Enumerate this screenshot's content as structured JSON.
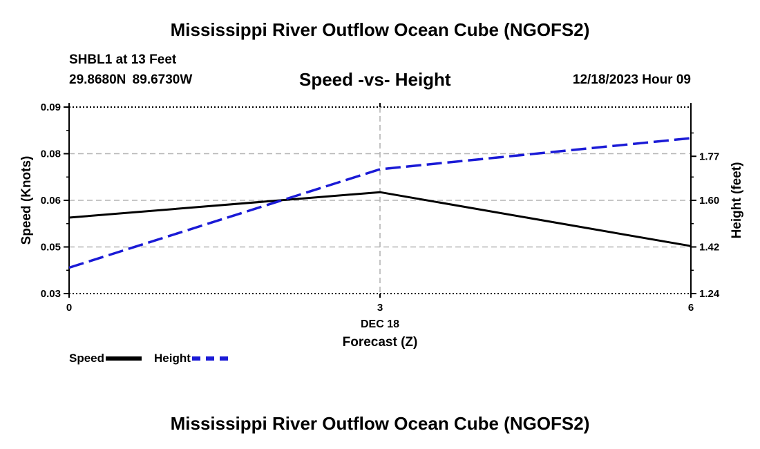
{
  "header": {
    "title": "Mississippi River Outflow Ocean Cube (NGOFS2)",
    "station": "SHBL1 at 13 Feet",
    "coords": "29.8680N  89.6730W",
    "subtitle": "Speed -vs- Height",
    "datetime": "12/18/2023 Hour 09"
  },
  "footer": {
    "title": "Mississippi River Outflow Ocean Cube (NGOFS2)"
  },
  "legend": {
    "speed_label": "Speed",
    "height_label": "Height"
  },
  "colors": {
    "speed": "#000000",
    "height": "#1a1ad6",
    "grid": "#b4b4b4"
  },
  "chart_data": {
    "type": "line",
    "x": [
      0,
      3,
      6
    ],
    "xlim": [
      0,
      6
    ],
    "x_ticks": [
      "0",
      "3",
      "6"
    ],
    "x_date_label": "DEC 18",
    "xlabel": "Forecast (Z)",
    "y_left": {
      "label": "Speed (Knots)",
      "ticks": [
        0.03,
        0.05,
        0.06,
        0.08,
        0.09
      ],
      "tick_labels": [
        "0.03",
        "0.05",
        "0.06",
        "0.08",
        "0.09"
      ]
    },
    "y_right": {
      "label": "Height (feet)",
      "ticks": [
        1.24,
        1.42,
        1.6,
        1.77
      ],
      "tick_labels": [
        "1.24",
        "1.42",
        "1.60",
        "1.77"
      ]
    },
    "series": [
      {
        "name": "Speed",
        "axis": "left",
        "values": [
          0.0563,
          0.0635,
          0.0502
        ]
      },
      {
        "name": "Height",
        "axis": "right",
        "values": [
          1.34,
          1.72,
          1.84
        ]
      }
    ]
  }
}
